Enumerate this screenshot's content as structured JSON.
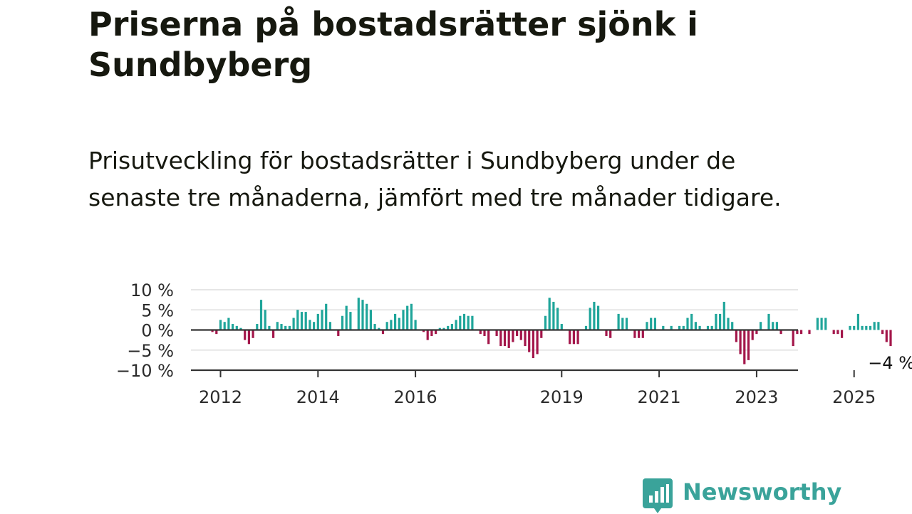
{
  "title": "Priserna på bostadsrätter sjönk i Sundbyberg",
  "subtitle": "Prisutveckling för bostadsrätter i Sundbyberg under de senaste tre månaderna, jämfört med tre månader tidigare.",
  "brand": {
    "name": "Newsworthy",
    "color": "#3aa39a"
  },
  "colors": {
    "positive": "#1fa59a",
    "negative": "#a3164a",
    "zero_line": "#333333",
    "grid": "#dddddd"
  },
  "chart_data": {
    "type": "bar",
    "x_unit": "month",
    "start": "2011-11",
    "ylim": [
      -10,
      10
    ],
    "yticks": [
      10,
      5,
      0,
      -5,
      -10
    ],
    "ytick_labels": [
      "10 %",
      "5 %",
      "0 %",
      "−5 %",
      "−10 %"
    ],
    "xticks": [
      {
        "year": 2012,
        "label": "2012"
      },
      {
        "year": 2014,
        "label": "2014"
      },
      {
        "year": 2016,
        "label": "2016"
      },
      {
        "year": 2019,
        "label": "2019"
      },
      {
        "year": 2021,
        "label": "2021"
      },
      {
        "year": 2023,
        "label": "2023"
      },
      {
        "year": 2025,
        "label": "2025"
      }
    ],
    "grid": true,
    "end_label": "−4 %",
    "values": [
      -0.5,
      -1,
      2.5,
      2,
      3,
      1.5,
      1,
      0.5,
      -2.5,
      -3.5,
      -2,
      1.5,
      7.5,
      5,
      1,
      -2,
      2,
      1.5,
      1,
      1,
      3,
      5,
      4.5,
      4.5,
      2.5,
      2,
      4,
      5,
      6.5,
      2,
      0,
      -1.5,
      3.5,
      6,
      4.5,
      0,
      8,
      7.5,
      6.5,
      5,
      1.5,
      0.5,
      -1,
      2,
      2.5,
      4,
      3,
      5,
      6,
      6.5,
      2.5,
      0,
      -0.5,
      -2.5,
      -1.5,
      -1,
      0.5,
      0.5,
      1,
      1.5,
      2.5,
      3.5,
      4,
      3.5,
      3.5,
      0,
      -1,
      -1.5,
      -3.5,
      0,
      -1.5,
      -4,
      -4,
      -4.5,
      -3,
      -1.5,
      -2.5,
      -4,
      -5.5,
      -7,
      -6,
      -2,
      3.5,
      8,
      7,
      5.5,
      1.5,
      0,
      -3.5,
      -3.5,
      -3.5,
      0,
      1,
      5.5,
      7,
      6,
      0,
      -1.5,
      -2,
      0,
      4,
      3,
      3,
      0,
      -2,
      -2,
      -2,
      2,
      3,
      3,
      0,
      1,
      0,
      1,
      0,
      1,
      1,
      3,
      4,
      2,
      1,
      0,
      1,
      1,
      4,
      4,
      7,
      3,
      2,
      -3,
      -6,
      -8.5,
      -7.5,
      -2.5,
      -1,
      2,
      0,
      4,
      2,
      2,
      -1,
      0,
      0,
      -4,
      -1,
      -1,
      0,
      -1,
      0,
      3,
      3,
      3,
      0,
      -1,
      -1,
      -2,
      0,
      1,
      1,
      4,
      1,
      1,
      1,
      2,
      2,
      -1,
      -3,
      -4
    ]
  }
}
